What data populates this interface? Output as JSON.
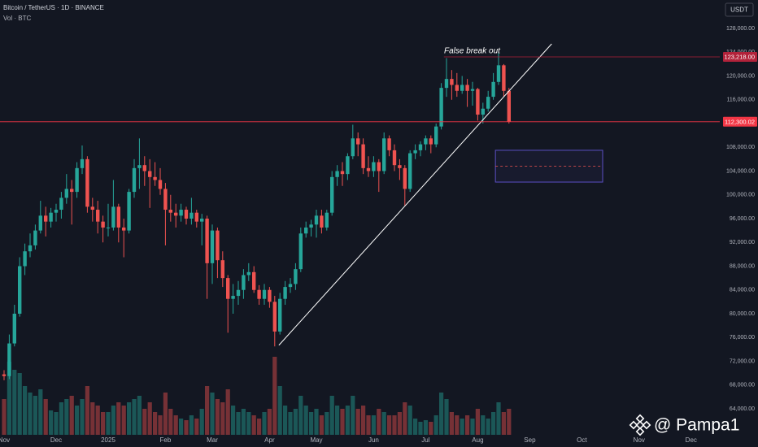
{
  "header": {
    "symbol": "Bitcoin / TetherUS · 1D · BINANCE",
    "volume_label": "Vol · BTC",
    "currency": "USDT"
  },
  "watermark": "@ Pampa1",
  "chart_data": {
    "type": "candlestick",
    "annotation": "False break out",
    "up_color": "#26a69a",
    "down_color": "#ef5350",
    "ylim": [
      59624,
      132786
    ],
    "yticks": [
      {
        "value": 128000,
        "label": "128,000.00"
      },
      {
        "value": 124000,
        "label": "124,000.00"
      },
      {
        "value": 120000,
        "label": "120,000.00"
      },
      {
        "value": 116000,
        "label": "116,000.00"
      },
      {
        "value": 112000,
        "label": "112,000.00"
      },
      {
        "value": 108000,
        "label": "108,000.00"
      },
      {
        "value": 104000,
        "label": "104,000.00"
      },
      {
        "value": 100000,
        "label": "100,000.00"
      },
      {
        "value": 96000,
        "label": "96,000.00"
      },
      {
        "value": 92000,
        "label": "92,000.00"
      },
      {
        "value": 88000,
        "label": "88,000.00"
      },
      {
        "value": 84000,
        "label": "84,000.00"
      },
      {
        "value": 80000,
        "label": "80,000.00"
      },
      {
        "value": 76000,
        "label": "76,000.00"
      },
      {
        "value": 72000,
        "label": "72,000.00"
      },
      {
        "value": 68000,
        "label": "68,000.00"
      },
      {
        "value": 64000,
        "label": "64,000.00"
      }
    ],
    "volume_lim": [
      0,
      100000
    ],
    "categories": [
      "Nov",
      null,
      null,
      null,
      null,
      null,
      null,
      null,
      null,
      null,
      "Dec",
      null,
      null,
      null,
      null,
      null,
      null,
      null,
      null,
      null,
      "2025",
      null,
      null,
      null,
      null,
      null,
      null,
      null,
      null,
      null,
      null,
      "Feb",
      null,
      null,
      null,
      null,
      null,
      null,
      null,
      null,
      "Mar",
      null,
      null,
      null,
      null,
      null,
      null,
      null,
      null,
      null,
      null,
      "Apr",
      null,
      null,
      null,
      null,
      null,
      null,
      null,
      null,
      "May",
      null,
      null,
      null,
      null,
      null,
      null,
      null,
      null,
      null,
      null,
      "Jun",
      null,
      null,
      null,
      null,
      null,
      null,
      null,
      null,
      null,
      "Jul",
      null,
      null,
      null,
      null,
      null,
      null,
      null,
      null,
      null,
      "Aug",
      null,
      null,
      null,
      null,
      null,
      null,
      null,
      null,
      null,
      "Sep",
      null,
      null,
      null,
      null,
      null,
      null,
      null,
      null,
      null,
      "Oct",
      null,
      null,
      null,
      null,
      null,
      null,
      null,
      null,
      null,
      null,
      "Nov",
      null,
      null,
      null,
      null,
      null,
      null,
      null,
      null,
      null,
      "Dec",
      null,
      null,
      null,
      null,
      null
    ],
    "open": [
      69800,
      69500,
      75000,
      80000,
      88000,
      90500,
      91500,
      94000,
      96500,
      95500,
      97000,
      97500,
      99500,
      101000,
      100500,
      104500,
      106000,
      98000,
      97500,
      95500,
      94500,
      94500,
      98000,
      94500,
      94000,
      100500,
      104500,
      105000,
      104000,
      103000,
      102500,
      101000,
      97500,
      97000,
      96500,
      97500,
      96000,
      97000,
      95500,
      96000,
      88500,
      94000,
      89000,
      86000,
      82500,
      83000,
      84000,
      86500,
      87000,
      84000,
      82500,
      84000,
      82000,
      77000,
      82500,
      84500,
      85000,
      87500,
      93500,
      94500,
      95000,
      96500,
      94500,
      97000,
      103000,
      104000,
      103500,
      106500,
      109500,
      108500,
      104500,
      104000,
      105500,
      104000,
      109500,
      107500,
      105000,
      104500,
      101000,
      107000,
      107500,
      108500,
      109500,
      108500,
      111500,
      118000,
      119500,
      118500,
      117500,
      118500,
      117500,
      117800,
      113500,
      114500,
      116500,
      119000,
      121800,
      117500,
      null,
      null,
      null,
      null,
      null,
      null,
      null,
      null,
      null,
      null,
      null,
      null,
      null,
      null,
      null,
      null,
      null,
      null,
      null,
      null,
      null,
      null,
      null,
      null,
      null,
      null,
      null,
      null,
      null,
      null,
      null,
      null,
      null,
      null,
      null,
      null,
      null,
      null,
      null,
      null
    ],
    "high": [
      70500,
      76500,
      81500,
      89500,
      91800,
      93500,
      95000,
      99000,
      98000,
      97800,
      98500,
      100500,
      103500,
      102500,
      105500,
      108300,
      106500,
      99500,
      99000,
      96500,
      98500,
      102500,
      98500,
      96000,
      101000,
      106000,
      109500,
      106500,
      106000,
      105500,
      104500,
      102000,
      100000,
      98500,
      98500,
      98000,
      99500,
      97500,
      96800,
      96500,
      95000,
      94500,
      90500,
      86500,
      85000,
      85500,
      87500,
      88500,
      88000,
      84800,
      85000,
      84500,
      83000,
      83500,
      85500,
      86000,
      88500,
      94500,
      95500,
      95800,
      97500,
      97500,
      97500,
      104000,
      105000,
      105500,
      107000,
      111800,
      110500,
      109500,
      106500,
      106500,
      106000,
      110500,
      110000,
      108500,
      106000,
      105000,
      107500,
      108500,
      109000,
      110000,
      110000,
      112000,
      118800,
      123000,
      121000,
      120500,
      120000,
      119500,
      119000,
      118000,
      115500,
      117500,
      120500,
      124100,
      122000,
      118000,
      null,
      null,
      null,
      null,
      null,
      null,
      null,
      null,
      null,
      null,
      null,
      null,
      null,
      null,
      null,
      null,
      null,
      null,
      null,
      null,
      null,
      null,
      null,
      null,
      null,
      null,
      null,
      null,
      null,
      null,
      null,
      null,
      null,
      null,
      null,
      null,
      null,
      null,
      null,
      null
    ],
    "low": [
      68800,
      69000,
      74500,
      79500,
      86500,
      89500,
      90800,
      93500,
      93000,
      94500,
      95500,
      96000,
      98500,
      95000,
      99500,
      103500,
      97000,
      95500,
      93500,
      92000,
      93000,
      94000,
      92000,
      89500,
      93500,
      99500,
      101000,
      101500,
      97800,
      101500,
      100000,
      91500,
      95500,
      94500,
      95500,
      95000,
      95000,
      94500,
      91500,
      82500,
      85000,
      86000,
      84500,
      76800,
      80000,
      81500,
      82500,
      85500,
      83500,
      81500,
      81500,
      81000,
      74500,
      76500,
      81500,
      83500,
      84000,
      87000,
      92800,
      93000,
      92800,
      93500,
      94000,
      96500,
      101500,
      101500,
      102500,
      106000,
      106500,
      103500,
      103000,
      103000,
      100500,
      103500,
      106500,
      104000,
      102500,
      98200,
      100500,
      106000,
      106500,
      107500,
      107000,
      108000,
      111000,
      116500,
      116000,
      116500,
      117000,
      114800,
      115000,
      112500,
      112000,
      114000,
      116000,
      118500,
      116500,
      112000,
      null,
      null,
      null,
      null,
      null,
      null,
      null,
      null,
      null,
      null,
      null,
      null,
      null,
      null,
      null,
      null,
      null,
      null,
      null,
      null,
      null,
      null,
      null,
      null,
      null,
      null,
      null,
      null,
      null,
      null,
      null,
      null,
      null,
      null,
      null,
      null,
      null,
      null,
      null,
      null
    ],
    "close": [
      69500,
      75000,
      80000,
      88000,
      90500,
      91500,
      94000,
      96500,
      95500,
      97000,
      97500,
      99500,
      101000,
      100500,
      104500,
      106000,
      98000,
      97500,
      95500,
      94500,
      94500,
      98000,
      94500,
      94000,
      100500,
      104500,
      105000,
      104000,
      103000,
      102500,
      101000,
      97500,
      97000,
      96500,
      97500,
      96000,
      97000,
      95500,
      96000,
      88500,
      94000,
      89000,
      86000,
      82500,
      83000,
      84000,
      86500,
      87000,
      84000,
      82500,
      84000,
      82000,
      77000,
      82500,
      84500,
      85000,
      87500,
      93500,
      94500,
      95000,
      96500,
      94500,
      97000,
      103000,
      104000,
      103500,
      106500,
      109500,
      108500,
      104500,
      104000,
      105500,
      104000,
      109500,
      107500,
      105000,
      104500,
      101000,
      107000,
      107500,
      108500,
      109500,
      108500,
      111500,
      118000,
      119500,
      118500,
      117500,
      118500,
      117500,
      117800,
      113500,
      114500,
      116500,
      119000,
      121800,
      117500,
      112300,
      null,
      null,
      null,
      null,
      null,
      null,
      null,
      null,
      null,
      null,
      null,
      null,
      null,
      null,
      null,
      null,
      null,
      null,
      null,
      null,
      null,
      null,
      null,
      null,
      null,
      null,
      null,
      null,
      null,
      null,
      null,
      null,
      null,
      null,
      null,
      null,
      null,
      null,
      null,
      null
    ],
    "volume": [
      22000,
      45000,
      40000,
      38000,
      30000,
      26000,
      24000,
      28000,
      22000,
      15000,
      14000,
      20000,
      22000,
      24000,
      18000,
      22000,
      30000,
      20000,
      18000,
      14000,
      14000,
      18000,
      20000,
      18000,
      20000,
      22000,
      24000,
      16000,
      20000,
      14000,
      12000,
      26000,
      16000,
      12000,
      10000,
      9000,
      12000,
      10000,
      16000,
      30000,
      26000,
      22000,
      20000,
      28000,
      18000,
      14000,
      16000,
      14000,
      12000,
      10000,
      14000,
      16000,
      48000,
      30000,
      18000,
      14000,
      16000,
      24000,
      18000,
      14000,
      16000,
      12000,
      14000,
      24000,
      18000,
      16000,
      18000,
      24000,
      16000,
      18000,
      12000,
      12000,
      16000,
      14000,
      12000,
      12000,
      14000,
      20000,
      18000,
      10000,
      8000,
      9000,
      8000,
      12000,
      26000,
      22000,
      14000,
      12000,
      10000,
      12000,
      10000,
      16000,
      12000,
      10000,
      14000,
      20000,
      14000,
      16000,
      null,
      null,
      null,
      null,
      null,
      null,
      null,
      null,
      null,
      null,
      null,
      null,
      null,
      null,
      null,
      null,
      null,
      null,
      null,
      null,
      null,
      null,
      null,
      null,
      null,
      null,
      null,
      null,
      null,
      null,
      null,
      null,
      null,
      null,
      null,
      null,
      null,
      null,
      null,
      null
    ],
    "price_lines": [
      {
        "value": 123218,
        "label": "123,218.00",
        "color": "#b2223a"
      },
      {
        "value": 112300.02,
        "label": "112,300.02",
        "color": "#f23645"
      }
    ],
    "trendline": {
      "x": [
        52.8,
        105.2
      ],
      "y": [
        74700,
        125400
      ],
      "color": "#ffffff"
    },
    "zone": {
      "x": [
        94.4,
        115
      ],
      "y": [
        102150,
        107500
      ],
      "mid": 104800,
      "color": "#5b4fc4"
    }
  }
}
